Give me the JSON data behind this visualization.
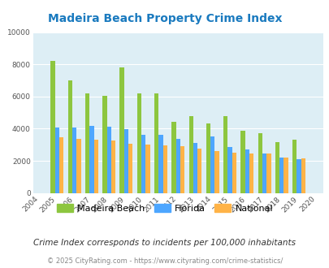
{
  "title": "Madeira Beach Property Crime Index",
  "years": [
    2004,
    2005,
    2006,
    2007,
    2008,
    2009,
    2010,
    2011,
    2012,
    2013,
    2014,
    2015,
    2016,
    2017,
    2018,
    2019,
    2020
  ],
  "madeira_beach": [
    null,
    8200,
    7000,
    6200,
    6050,
    7800,
    6200,
    6200,
    4400,
    4800,
    4300,
    4800,
    3850,
    3700,
    3150,
    3300,
    null
  ],
  "florida": [
    null,
    4050,
    4050,
    4150,
    4100,
    3950,
    3600,
    3600,
    3350,
    3100,
    3500,
    2850,
    2700,
    2450,
    2200,
    2100,
    null
  ],
  "national": [
    null,
    3450,
    3350,
    3300,
    3250,
    3050,
    3000,
    2950,
    2900,
    2750,
    2600,
    2500,
    2450,
    2450,
    2200,
    2150,
    null
  ],
  "color_madeira": "#8dc63f",
  "color_florida": "#4da6ff",
  "color_national": "#ffb347",
  "bg_color": "#ddeef5",
  "ylim": [
    0,
    10000
  ],
  "yticks": [
    0,
    2000,
    4000,
    6000,
    8000,
    10000
  ],
  "subtitle": "Crime Index corresponds to incidents per 100,000 inhabitants",
  "footer": "© 2025 CityRating.com - https://www.cityrating.com/crime-statistics/",
  "legend_labels": [
    "Madeira Beach",
    "Florida",
    "National"
  ],
  "bar_width": 0.25
}
